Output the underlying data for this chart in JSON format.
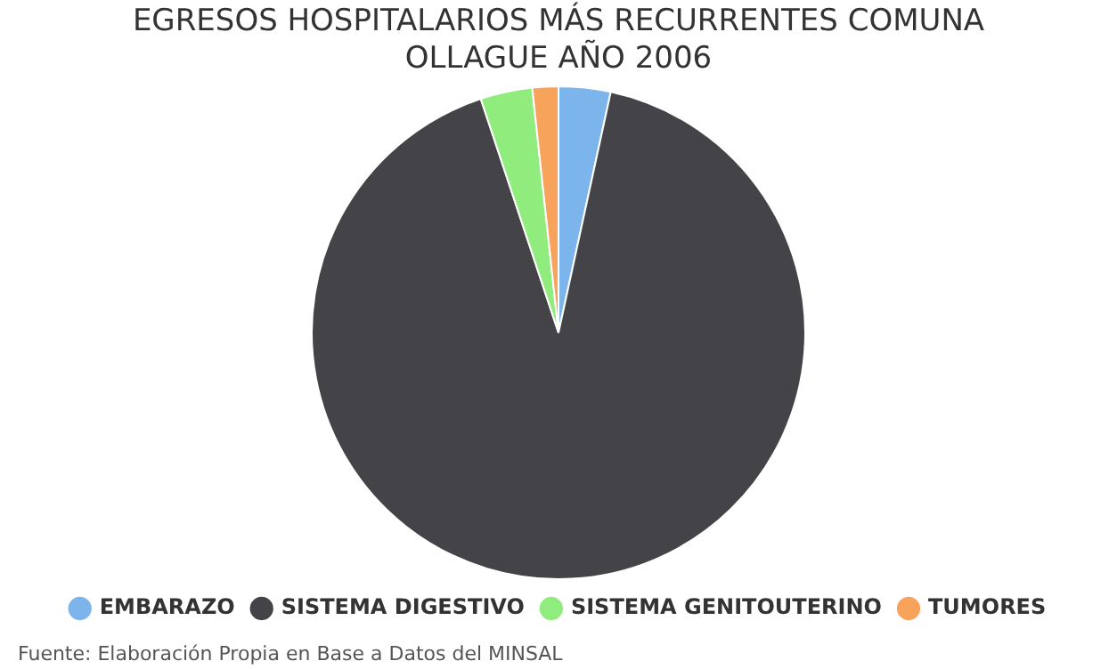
{
  "chart_data": {
    "type": "pie",
    "title": "EGRESOS HOSPITALARIOS MÁS RECURRENTES COMUNA OLLAGUE AÑO 2006",
    "categories": [
      "EMBARAZO",
      "SISTEMA DIGESTIVO",
      "SISTEMA GENITOUTERINO",
      "TUMORES"
    ],
    "values": [
      3.4,
      91.5,
      3.4,
      1.7
    ],
    "colors": [
      "#7cb5ec",
      "#434348",
      "#90ed7d",
      "#f7a35c"
    ],
    "legend": "bottom",
    "annotations": [
      "Fuente: Elaboración Propia en Base a Datos del MINSAL"
    ]
  }
}
